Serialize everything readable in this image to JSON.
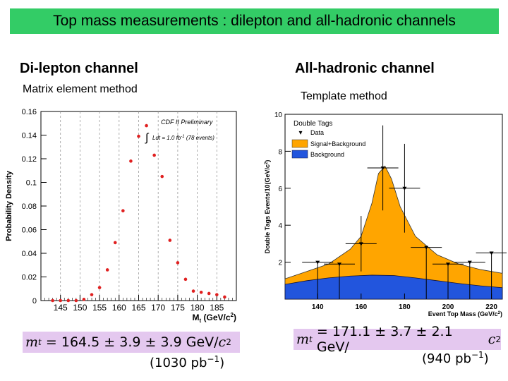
{
  "slide": {
    "title": "Top mass measurements : dilepton and all-hadronic channels",
    "colors": {
      "title_bg": "#33cc66",
      "formula_bg": "#e4c8ef"
    }
  },
  "left": {
    "heading": "Di-lepton channel",
    "subheading": "Matrix element method",
    "result": {
      "symbol": "m",
      "subscript": "t",
      "expr": "= 164.5 ± 3.9 ± 3.9 GeV/",
      "c": "c",
      "exp": "2"
    },
    "lumi": {
      "open": "(1030 pb",
      "exp": "−1",
      "close": ")"
    }
  },
  "right": {
    "heading": "All-hadronic channel",
    "subheading": "Template method",
    "result": {
      "symbol": "m",
      "subscript": "t",
      "expr": "= 171.1 ± 3.7 ± 2.1 GeV/",
      "c": "c",
      "exp": "2"
    },
    "lumi": {
      "open": "(940 pb",
      "exp": "−1",
      "close": ")"
    }
  },
  "chart_data": [
    {
      "type": "scatter",
      "ylabel": "Probability Density",
      "xlabel_main": "M",
      "xlabel_sub": "t",
      "xlabel_units": "(GeV/c",
      "xlabel_units_exp": "2",
      "xlabel_units_close": ")",
      "annotation": "CDF II Preliminary",
      "annotation2": "Ldt = 1.0 fb",
      "annotation2_exp": "-1",
      "annotation2_tail": "(78 events)",
      "xlim": [
        140,
        190
      ],
      "ylim": [
        0,
        0.16
      ],
      "xticks": [
        145,
        150,
        155,
        160,
        165,
        170,
        175,
        180,
        185
      ],
      "yticks": [
        0,
        0.02,
        0.04,
        0.06,
        0.08,
        0.1,
        0.12,
        0.14,
        0.16
      ],
      "ytick_labels": [
        "0",
        "0.02",
        "0.04",
        "0.06",
        "0.08",
        "0.1",
        "0.12",
        "0.14",
        "0.16"
      ],
      "grid": "vertical dashed",
      "marker_color": "#e02020",
      "x": [
        143,
        145,
        147,
        149,
        151,
        153,
        155,
        157,
        159,
        161,
        163,
        165,
        167,
        169,
        171,
        173,
        175,
        177,
        179,
        181,
        183,
        185,
        187
      ],
      "y": [
        0.0,
        0.0,
        0.0,
        0.0,
        0.001,
        0.005,
        0.011,
        0.026,
        0.049,
        0.076,
        0.118,
        0.139,
        0.148,
        0.123,
        0.105,
        0.051,
        0.032,
        0.018,
        0.008,
        0.007,
        0.006,
        0.005,
        0.003
      ]
    },
    {
      "type": "area",
      "ylabel": "Double Tags Events/10(GeV/c",
      "ylabel_exp": "2",
      "ylabel_close": ")",
      "xlabel": "Event Top Mass (GeV/c",
      "xlabel_exp": "2",
      "xlabel_close": ")",
      "xlim": [
        125,
        225
      ],
      "ylim": [
        0,
        10
      ],
      "xticks": [
        140,
        160,
        180,
        200,
        220
      ],
      "yticks": [
        2,
        4,
        6,
        8,
        10
      ],
      "legend_title": "Double Tags",
      "legend_placement": "top-left",
      "series": [
        {
          "name": "Data",
          "color": "#000000",
          "x": [
            140,
            150,
            160,
            170,
            180,
            190,
            200,
            210,
            220
          ],
          "y": [
            2.0,
            1.9,
            3.0,
            7.1,
            6.0,
            2.8,
            1.9,
            2.0,
            2.5
          ],
          "yerr": [
            [
              2.0,
              0
            ],
            [
              1.9,
              0
            ],
            [
              1.5,
              1.5
            ],
            [
              2.3,
              2.3
            ],
            [
              2.4,
              2.4
            ],
            [
              2.8,
              0
            ],
            [
              1.9,
              0
            ],
            [
              2.0,
              0
            ],
            [
              2.5,
              0
            ]
          ]
        },
        {
          "name": "Signal+Background",
          "color": "#ffa500",
          "x": [
            125,
            135,
            145,
            155,
            160,
            165,
            168,
            171,
            174,
            178,
            185,
            195,
            205,
            215,
            225
          ],
          "y": [
            1.1,
            1.5,
            1.9,
            2.7,
            3.4,
            5.2,
            6.8,
            7.2,
            6.5,
            5.0,
            3.4,
            2.4,
            1.9,
            1.6,
            1.4
          ]
        },
        {
          "name": "Background",
          "color": "#2255dd",
          "x": [
            125,
            135,
            145,
            155,
            165,
            175,
            185,
            195,
            205,
            215,
            225
          ],
          "y": [
            0.8,
            1.0,
            1.15,
            1.25,
            1.3,
            1.28,
            1.15,
            1.0,
            0.85,
            0.72,
            0.62
          ]
        }
      ]
    }
  ]
}
